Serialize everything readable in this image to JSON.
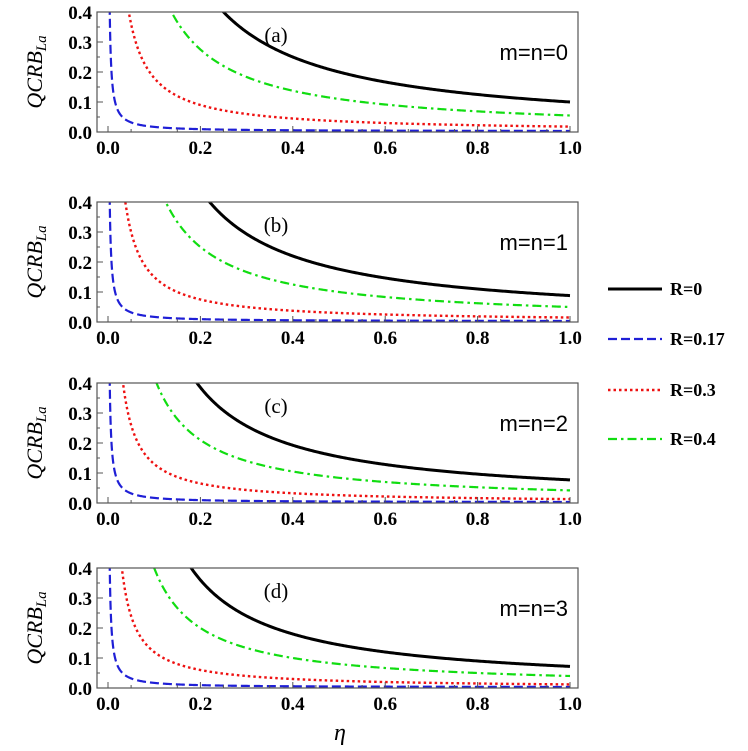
{
  "chart_data": [
    {
      "type": "line",
      "panel_label": "(a)",
      "annotation": "m=n=0",
      "ylabel": "QCRB",
      "ylabel_sub": "La",
      "xlabel": "",
      "xlim": [
        0,
        1.0
      ],
      "ylim": [
        0,
        0.4
      ],
      "xticks": [
        "0.0",
        "0.2",
        "0.4",
        "0.6",
        "0.8",
        "1.0"
      ],
      "yticks": [
        "0.0",
        "0.1",
        "0.2",
        "0.3",
        "0.4"
      ],
      "series": [
        {
          "name": "R=0",
          "k": 0.1,
          "floor": 0
        },
        {
          "name": "R=0.17",
          "k": 0.0015,
          "floor": 0.002
        },
        {
          "name": "R=0.3",
          "k": 0.018,
          "floor": 0
        },
        {
          "name": "R=0.4",
          "k": 0.055,
          "floor": 0
        }
      ]
    },
    {
      "type": "line",
      "panel_label": "(b)",
      "annotation": "m=n=1",
      "ylabel": "QCRB",
      "ylabel_sub": "La",
      "xlabel": "",
      "xlim": [
        0,
        1.0
      ],
      "ylim": [
        0,
        0.4
      ],
      "xticks": [
        "0.0",
        "0.2",
        "0.4",
        "0.6",
        "0.8",
        "1.0"
      ],
      "yticks": [
        "0.0",
        "0.1",
        "0.2",
        "0.3",
        "0.4"
      ],
      "series": [
        {
          "name": "R=0",
          "k": 0.088,
          "floor": 0
        },
        {
          "name": "R=0.17",
          "k": 0.0015,
          "floor": 0.002
        },
        {
          "name": "R=0.3",
          "k": 0.015,
          "floor": 0
        },
        {
          "name": "R=0.4",
          "k": 0.05,
          "floor": 0
        }
      ]
    },
    {
      "type": "line",
      "panel_label": "(c)",
      "annotation": "m=n=2",
      "ylabel": "QCRB",
      "ylabel_sub": "La",
      "xlabel": "",
      "xlim": [
        0,
        1.0
      ],
      "ylim": [
        0,
        0.4
      ],
      "xticks": [
        "0.0",
        "0.2",
        "0.4",
        "0.6",
        "0.8",
        "1.0"
      ],
      "yticks": [
        "0.0",
        "0.1",
        "0.2",
        "0.3",
        "0.4"
      ],
      "series": [
        {
          "name": "R=0",
          "k": 0.077,
          "floor": 0
        },
        {
          "name": "R=0.17",
          "k": 0.0015,
          "floor": 0.002
        },
        {
          "name": "R=0.3",
          "k": 0.013,
          "floor": 0
        },
        {
          "name": "R=0.4",
          "k": 0.042,
          "floor": 0
        }
      ]
    },
    {
      "type": "line",
      "panel_label": "(d)",
      "annotation": "m=n=3",
      "ylabel": "QCRB",
      "ylabel_sub": "La",
      "xlabel": "η",
      "xlim": [
        0,
        1.0
      ],
      "ylim": [
        0,
        0.4
      ],
      "xticks": [
        "0.0",
        "0.2",
        "0.4",
        "0.6",
        "0.8",
        "1.0"
      ],
      "yticks": [
        "0.0",
        "0.1",
        "0.2",
        "0.3",
        "0.4"
      ],
      "series": [
        {
          "name": "R=0",
          "k": 0.072,
          "floor": 0
        },
        {
          "name": "R=0.17",
          "k": 0.0015,
          "floor": 0.002
        },
        {
          "name": "R=0.3",
          "k": 0.012,
          "floor": 0
        },
        {
          "name": "R=0.4",
          "k": 0.04,
          "floor": 0
        }
      ]
    }
  ],
  "legend": [
    {
      "label": "R=0",
      "color": "#000000",
      "style": "solid"
    },
    {
      "label": "R=0.17",
      "color": "#1f1fd6",
      "style": "dashed"
    },
    {
      "label": "R=0.3",
      "color": "#ee1111",
      "style": "dotted"
    },
    {
      "label": "R=0.4",
      "color": "#11dd11",
      "style": "dashdot"
    }
  ]
}
